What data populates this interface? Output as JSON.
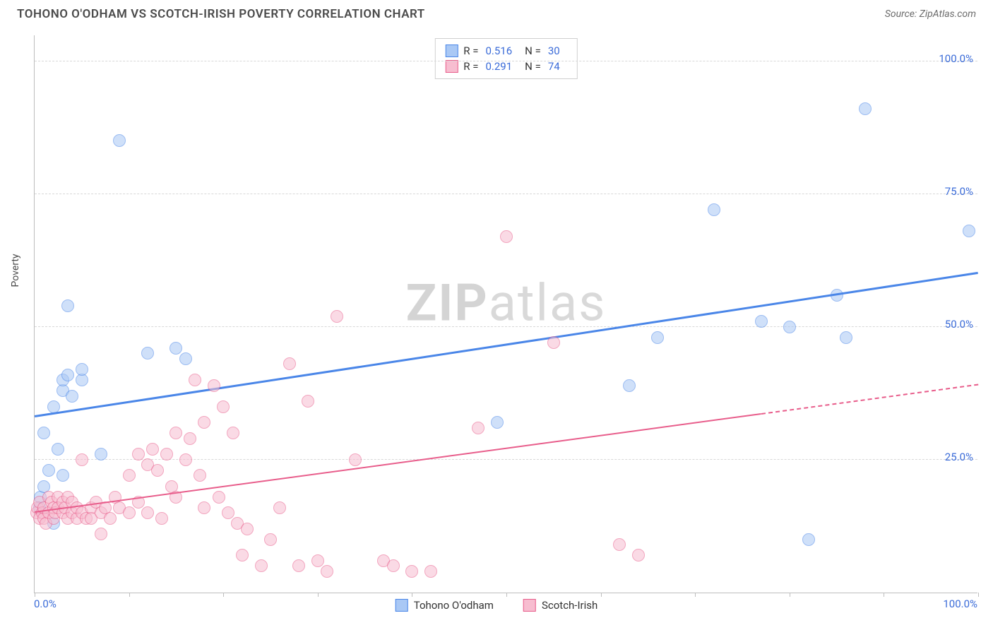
{
  "header": {
    "title": "TOHONO O'ODHAM VS SCOTCH-IRISH POVERTY CORRELATION CHART",
    "source": "Source: ZipAtlas.com"
  },
  "watermark": {
    "part1": "ZIP",
    "part2": "atlas"
  },
  "chart": {
    "type": "scatter",
    "yaxis_title": "Poverty",
    "xlim": [
      0,
      100
    ],
    "ylim": [
      0,
      105
    ],
    "yticks": [
      25,
      50,
      75,
      100
    ],
    "ytick_labels": [
      "25.0%",
      "50.0%",
      "75.0%",
      "100.0%"
    ],
    "xtick_positions": [
      0,
      10,
      20,
      30,
      40,
      50,
      60,
      70,
      80,
      90,
      100
    ],
    "xaxis_min_label": "0.0%",
    "xaxis_max_label": "100.0%",
    "grid_color": "#d8d8d8",
    "axis_color": "#bdbdbd",
    "tick_label_color": "#3a6bd8",
    "background_color": "#ffffff",
    "point_radius": 9,
    "point_opacity": 0.55,
    "series": [
      {
        "name": "Tohono O'odham",
        "stroke": "#4a86e8",
        "fill": "#a9c8f5",
        "r_value": "0.516",
        "n_value": "30",
        "trend": {
          "x1": 0,
          "y1": 33,
          "x2": 100,
          "y2": 60,
          "width": 3,
          "dashed_after_x": null
        },
        "points": [
          [
            0.5,
            16
          ],
          [
            0.6,
            18
          ],
          [
            1,
            20
          ],
          [
            1,
            30
          ],
          [
            1.5,
            23
          ],
          [
            2,
            13
          ],
          [
            2.5,
            27
          ],
          [
            2,
            35
          ],
          [
            3,
            22
          ],
          [
            3.5,
            54
          ],
          [
            3,
            38
          ],
          [
            3,
            40
          ],
          [
            3.5,
            41
          ],
          [
            4,
            37
          ],
          [
            5,
            40
          ],
          [
            5,
            42
          ],
          [
            7,
            26
          ],
          [
            9,
            85
          ],
          [
            12,
            45
          ],
          [
            15,
            46
          ],
          [
            16,
            44
          ],
          [
            49,
            32
          ],
          [
            63,
            39
          ],
          [
            66,
            48
          ],
          [
            72,
            72
          ],
          [
            77,
            51
          ],
          [
            80,
            50
          ],
          [
            82,
            10
          ],
          [
            85,
            56
          ],
          [
            86,
            48
          ],
          [
            88,
            91
          ],
          [
            99,
            68
          ]
        ]
      },
      {
        "name": "Scotch-Irish",
        "stroke": "#e85d8b",
        "fill": "#f7bdd0",
        "r_value": "0.291",
        "n_value": "74",
        "trend": {
          "x1": 0,
          "y1": 15,
          "x2": 100,
          "y2": 39,
          "width": 2,
          "dashed_after_x": 77
        },
        "points": [
          [
            0.2,
            15
          ],
          [
            0.3,
            16
          ],
          [
            0.5,
            14
          ],
          [
            0.5,
            17
          ],
          [
            0.8,
            15
          ],
          [
            1,
            14
          ],
          [
            1,
            16
          ],
          [
            1.2,
            13
          ],
          [
            1.5,
            18
          ],
          [
            1.5,
            15
          ],
          [
            1.8,
            17
          ],
          [
            2,
            14
          ],
          [
            2,
            16
          ],
          [
            2.2,
            15
          ],
          [
            2.5,
            18
          ],
          [
            2.5,
            16
          ],
          [
            3,
            15
          ],
          [
            3,
            17
          ],
          [
            3.2,
            16
          ],
          [
            3.5,
            14
          ],
          [
            3.5,
            18
          ],
          [
            4,
            15
          ],
          [
            4,
            17
          ],
          [
            4.5,
            14
          ],
          [
            4.5,
            16
          ],
          [
            5,
            15
          ],
          [
            5,
            25
          ],
          [
            5.5,
            14
          ],
          [
            6,
            16
          ],
          [
            6,
            14
          ],
          [
            6.5,
            17
          ],
          [
            7,
            15
          ],
          [
            7,
            11
          ],
          [
            7.5,
            16
          ],
          [
            8,
            14
          ],
          [
            8.5,
            18
          ],
          [
            9,
            16
          ],
          [
            10,
            22
          ],
          [
            10,
            15
          ],
          [
            11,
            26
          ],
          [
            11,
            17
          ],
          [
            12,
            24
          ],
          [
            12,
            15
          ],
          [
            12.5,
            27
          ],
          [
            13,
            23
          ],
          [
            13.5,
            14
          ],
          [
            14,
            26
          ],
          [
            14.5,
            20
          ],
          [
            15,
            30
          ],
          [
            15,
            18
          ],
          [
            16,
            25
          ],
          [
            16.5,
            29
          ],
          [
            17,
            40
          ],
          [
            17.5,
            22
          ],
          [
            18,
            32
          ],
          [
            18,
            16
          ],
          [
            19,
            39
          ],
          [
            19.5,
            18
          ],
          [
            20,
            35
          ],
          [
            20.5,
            15
          ],
          [
            21,
            30
          ],
          [
            21.5,
            13
          ],
          [
            22,
            7
          ],
          [
            22.5,
            12
          ],
          [
            24,
            5
          ],
          [
            25,
            10
          ],
          [
            26,
            16
          ],
          [
            27,
            43
          ],
          [
            28,
            5
          ],
          [
            29,
            36
          ],
          [
            30,
            6
          ],
          [
            31,
            4
          ],
          [
            32,
            52
          ],
          [
            34,
            25
          ],
          [
            37,
            6
          ],
          [
            38,
            5
          ],
          [
            40,
            4
          ],
          [
            42,
            4
          ],
          [
            47,
            31
          ],
          [
            50,
            67
          ],
          [
            55,
            47
          ],
          [
            62,
            9
          ],
          [
            64,
            7
          ]
        ]
      }
    ]
  },
  "legend_top": {
    "r_label": "R =",
    "n_label": "N ="
  },
  "legend_bottom": {
    "items": [
      "Tohono O'odham",
      "Scotch-Irish"
    ]
  }
}
